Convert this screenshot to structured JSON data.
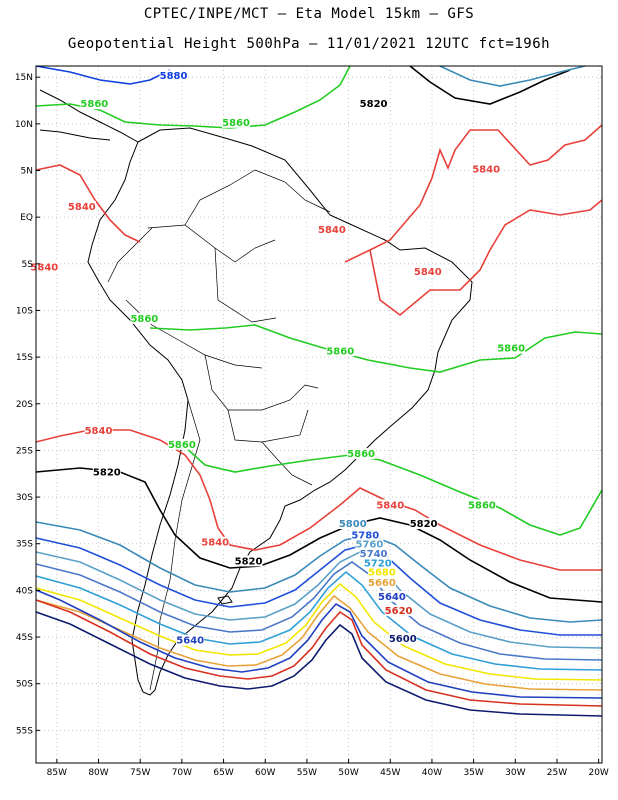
{
  "header": {
    "line1": "CPTEC/INPE/MCT –  Eta Model 15km – GFS",
    "line2": "Geopotential Height 500hPa – 11/01/2021 12UTC fct=196h"
  },
  "axes": {
    "lat_labels": [
      "15N",
      "10N",
      "5N",
      "EQ",
      "5S",
      "10S",
      "15S",
      "20S",
      "25S",
      "30S",
      "35S",
      "40S",
      "45S",
      "50S",
      "55S"
    ],
    "lon_labels": [
      "85W",
      "80W",
      "75W",
      "70W",
      "65W",
      "60W",
      "55W",
      "50W",
      "45W",
      "40W",
      "35W",
      "30W",
      "25W",
      "20W"
    ],
    "grid": true
  },
  "contour_colors": {
    "5600": "#0d1b6e",
    "5620": "#d7301f",
    "5640": "#1f3fbf",
    "5660": "#e8a23a",
    "5680": "#f2e600",
    "5720": "#2f9fd8",
    "5740": "#4a78c8",
    "5760": "#5aa0c8",
    "5780": "#2050d8",
    "5800": "#3a8ab8",
    "5820": "#000000",
    "5840": "#e8403a",
    "5860": "#22cc22",
    "5880": "#1040e0"
  },
  "contour_labels": [
    {
      "value": "5880",
      "lon": -71,
      "lat": 15
    },
    {
      "value": "5860",
      "lon": -80.5,
      "lat": 12
    },
    {
      "value": "5860",
      "lon": -63.5,
      "lat": 10
    },
    {
      "value": "5820",
      "lon": -47,
      "lat": 12
    },
    {
      "value": "5840",
      "lon": -33.5,
      "lat": 5
    },
    {
      "value": "5840",
      "lon": -82,
      "lat": 1
    },
    {
      "value": "5840",
      "lon": -86.5,
      "lat": -5.5
    },
    {
      "value": "5840",
      "lon": -52,
      "lat": -1.5
    },
    {
      "value": "5840",
      "lon": -40.5,
      "lat": -6
    },
    {
      "value": "5860",
      "lon": -74.5,
      "lat": -11
    },
    {
      "value": "5860",
      "lon": -51,
      "lat": -14.5
    },
    {
      "value": "5860",
      "lon": -30.5,
      "lat": -14.2
    },
    {
      "value": "5840",
      "lon": -80,
      "lat": -23
    },
    {
      "value": "5860",
      "lon": -70,
      "lat": -24.5
    },
    {
      "value": "5860",
      "lon": -48.5,
      "lat": -25.5
    },
    {
      "value": "5820",
      "lon": -79,
      "lat": -27.5
    },
    {
      "value": "5840",
      "lon": -45,
      "lat": -31
    },
    {
      "value": "5860",
      "lon": -34,
      "lat": -31
    },
    {
      "value": "5820",
      "lon": -41,
      "lat": -33
    },
    {
      "value": "5800",
      "lon": -49.5,
      "lat": -33
    },
    {
      "value": "5780",
      "lon": -48,
      "lat": -34.2
    },
    {
      "value": "5760",
      "lon": -47.5,
      "lat": -35.2
    },
    {
      "value": "5740",
      "lon": -47,
      "lat": -36.2
    },
    {
      "value": "5720",
      "lon": -46.5,
      "lat": -37.2
    },
    {
      "value": "5680",
      "lon": -46,
      "lat": -38.2
    },
    {
      "value": "5660",
      "lon": -46,
      "lat": -39.3
    },
    {
      "value": "5640",
      "lon": -44.8,
      "lat": -40.8
    },
    {
      "value": "5620",
      "lon": -44,
      "lat": -42.3
    },
    {
      "value": "5600",
      "lon": -43.5,
      "lat": -45.3
    },
    {
      "value": "5840",
      "lon": -66,
      "lat": -35
    },
    {
      "value": "5820",
      "lon": -62,
      "lat": -37
    },
    {
      "value": "5640",
      "lon": -69,
      "lat": -45.5
    }
  ]
}
